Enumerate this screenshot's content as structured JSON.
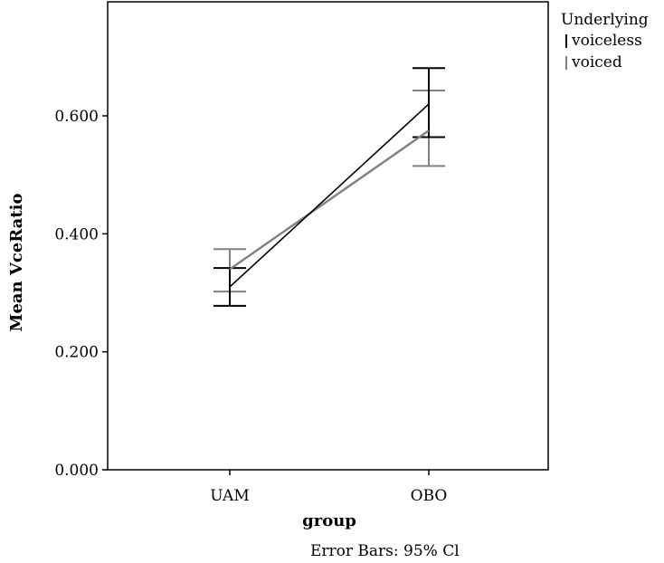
{
  "chart_data": {
    "type": "line",
    "categories": [
      "UAM",
      "OBO"
    ],
    "xlabel": "group",
    "ylabel": "Mean VceRatio",
    "ylim": [
      0,
      0.78
    ],
    "yticks": [
      {
        "value": 0.0,
        "label": "0.000"
      },
      {
        "value": 0.2,
        "label": "0.200"
      },
      {
        "value": 0.4,
        "label": "0.400"
      },
      {
        "value": 0.6,
        "label": "0.600"
      }
    ],
    "legend": {
      "title": "Underlying",
      "placement": "outside-top-right"
    },
    "series": [
      {
        "name": "voiceless",
        "color": "#000000",
        "values": [
          0.31,
          0.62
        ],
        "ci_lower": [
          0.278,
          0.564
        ],
        "ci_upper": [
          0.342,
          0.681
        ]
      },
      {
        "name": "voiced",
        "color": "#808080",
        "values": [
          0.34,
          0.575
        ],
        "ci_lower": [
          0.302,
          0.515
        ],
        "ci_upper": [
          0.374,
          0.643
        ]
      }
    ],
    "footnote": "Error Bars: 95% Cl"
  }
}
